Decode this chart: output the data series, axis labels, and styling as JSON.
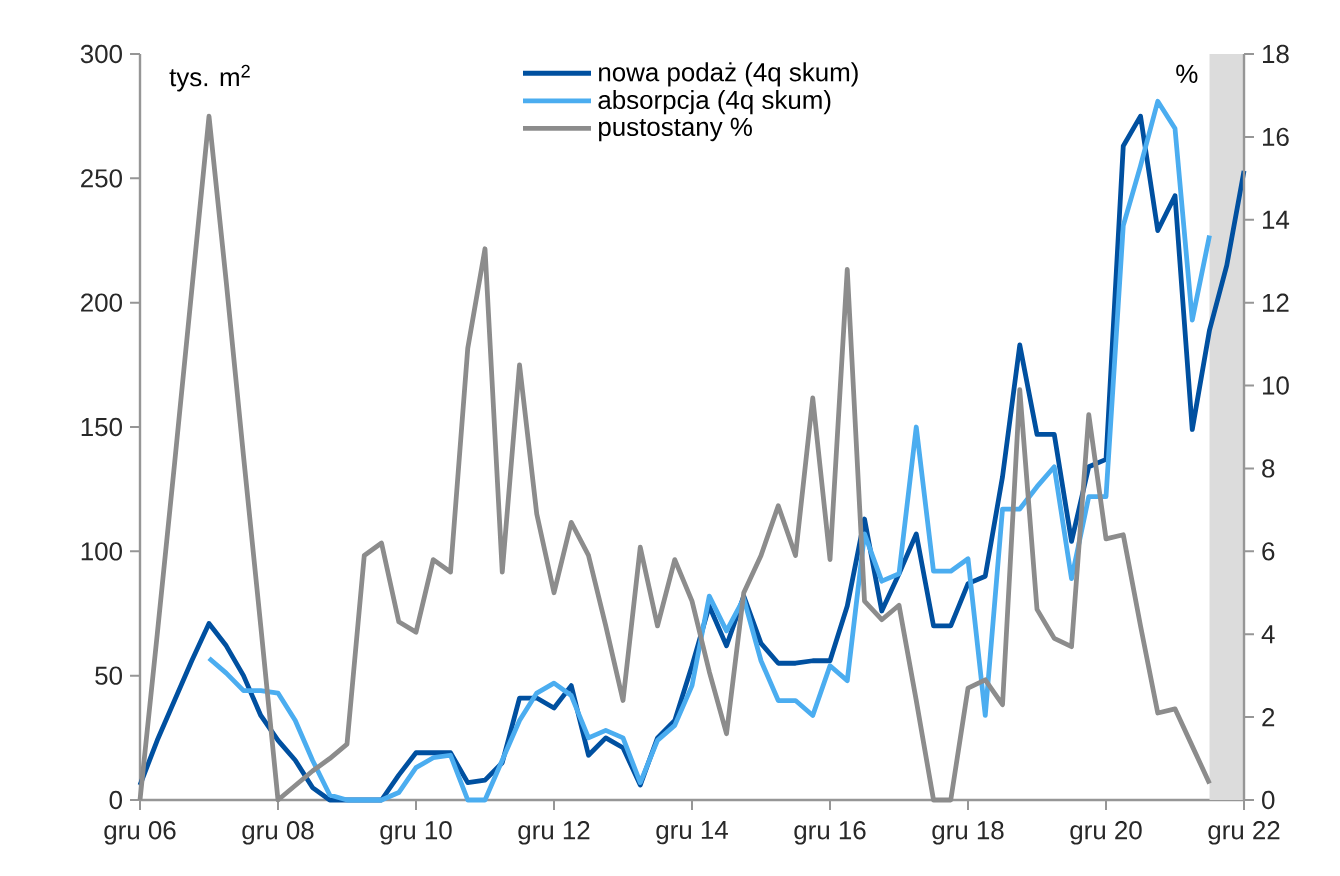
{
  "chart_data": {
    "type": "line",
    "ylabel": "tys. m$^{2}$",
    "y2label": "%",
    "x": [
      "2006-12",
      "2007-03",
      "2007-06",
      "2007-09",
      "2007-12",
      "2008-03",
      "2008-06",
      "2008-09",
      "2008-12",
      "2009-03",
      "2009-06",
      "2009-09",
      "2009-12",
      "2010-03",
      "2010-06",
      "2010-09",
      "2010-12",
      "2011-03",
      "2011-06",
      "2011-09",
      "2011-12",
      "2012-03",
      "2012-06",
      "2012-09",
      "2012-12",
      "2013-03",
      "2013-06",
      "2013-09",
      "2013-12",
      "2014-03",
      "2014-06",
      "2014-09",
      "2014-12",
      "2015-03",
      "2015-06",
      "2015-09",
      "2015-12",
      "2016-03",
      "2016-06",
      "2016-09",
      "2016-12",
      "2017-03",
      "2017-06",
      "2017-09",
      "2017-12",
      "2018-03",
      "2018-06",
      "2018-09",
      "2018-12",
      "2019-03",
      "2019-06",
      "2019-09",
      "2019-12",
      "2020-03",
      "2020-06",
      "2020-09",
      "2020-12",
      "2021-03",
      "2021-06",
      "2021-09",
      "2021-12",
      "2022-03",
      "2022-06",
      "2022-09",
      "2022-12"
    ],
    "xlim": [
      "2006-12",
      "2022-12"
    ],
    "xticks": [
      {
        "value": "2006-12",
        "label": "gru 06"
      },
      {
        "value": "2008-12",
        "label": "gru 08"
      },
      {
        "value": "2010-12",
        "label": "gru 10"
      },
      {
        "value": "2012-12",
        "label": "gru 12"
      },
      {
        "value": "2014-12",
        "label": "gru 14"
      },
      {
        "value": "2016-12",
        "label": "gru 16"
      },
      {
        "value": "2018-12",
        "label": "gru 18"
      },
      {
        "value": "2020-12",
        "label": "gru 20"
      },
      {
        "value": "2022-12",
        "label": "gru 22"
      }
    ],
    "ylim": [
      0,
      300
    ],
    "yticks": [
      0,
      50,
      100,
      150,
      200,
      250,
      300
    ],
    "y2lim": [
      0,
      18
    ],
    "y2ticks": [
      0,
      2,
      4,
      6,
      8,
      10,
      12,
      14,
      16,
      18
    ],
    "series": [
      {
        "name": "nowa podaż (4q skum)",
        "color": "#0050a0",
        "values": [
          6,
          24,
          40,
          56,
          71,
          62,
          50,
          34,
          24,
          16,
          5,
          0,
          0,
          0,
          0,
          10,
          19,
          19,
          19,
          7,
          8,
          15,
          41,
          41,
          37,
          46,
          18,
          25,
          21,
          6,
          25,
          32,
          54,
          78,
          62,
          82,
          63,
          55,
          55,
          56,
          56,
          78,
          113,
          76,
          91,
          107,
          70,
          70,
          87,
          90,
          130,
          183,
          147,
          147,
          104,
          134,
          137,
          263,
          275,
          229,
          243,
          149,
          189,
          215,
          253
        ]
      },
      {
        "name": "absorpcja (4q skum)",
        "color": "#4badf0",
        "values": [
          null,
          null,
          null,
          null,
          57,
          51,
          44,
          44,
          43,
          32,
          16,
          2,
          0,
          0,
          0,
          3,
          13,
          17,
          18,
          0,
          0,
          16,
          32,
          43,
          47,
          42,
          25,
          28,
          25,
          7,
          24,
          30,
          46,
          82,
          68,
          81,
          56,
          40,
          40,
          34,
          54,
          48,
          107,
          88,
          91,
          150,
          92,
          92,
          97,
          34,
          117,
          117,
          126,
          134,
          89,
          122,
          122,
          231,
          255,
          281,
          270,
          193,
          227,
          null,
          null
        ]
      },
      {
        "name": "pustostany %",
        "color": "#8c8c8c",
        "axis": "y2",
        "values": [
          0,
          4.0,
          8.1,
          12.3,
          16.5,
          12.5,
          8.3,
          4.2,
          0,
          0.35,
          0.7,
          1.0,
          1.35,
          5.9,
          6.2,
          4.3,
          4.05,
          5.8,
          5.5,
          10.9,
          13.3,
          5.5,
          10.5,
          6.9,
          5.0,
          6.7,
          5.9,
          4.2,
          2.4,
          6.1,
          4.2,
          5.8,
          4.8,
          3.1,
          1.6,
          5.0,
          5.9,
          7.1,
          5.9,
          9.7,
          5.8,
          12.8,
          4.8,
          4.35,
          4.7,
          2.4,
          0,
          0,
          2.7,
          2.9,
          2.3,
          9.9,
          4.6,
          3.9,
          3.7,
          9.3,
          6.3,
          6.4,
          4.2,
          2.1,
          2.2,
          1.3,
          0.4,
          null,
          null
        ]
      }
    ],
    "bands": [
      {
        "axis": "x",
        "from": "2022-06",
        "to": "2022-12",
        "color": "#dcdcdc"
      }
    ],
    "legend": "top",
    "grid": false
  }
}
